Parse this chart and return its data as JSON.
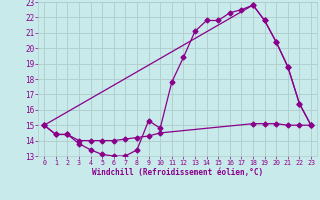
{
  "xlabel": "Windchill (Refroidissement éolien,°C)",
  "xlim": [
    -0.5,
    23.5
  ],
  "ylim": [
    13,
    23
  ],
  "xticks": [
    0,
    1,
    2,
    3,
    4,
    5,
    6,
    7,
    8,
    9,
    10,
    11,
    12,
    13,
    14,
    15,
    16,
    17,
    18,
    19,
    20,
    21,
    22,
    23
  ],
  "yticks": [
    13,
    14,
    15,
    16,
    17,
    18,
    19,
    20,
    21,
    22,
    23
  ],
  "bg_color": "#c8eaea",
  "line_color": "#8b008b",
  "grid_color": "#b0cccc",
  "line1_x": [
    0,
    1,
    2,
    3,
    4,
    5,
    6,
    7,
    8,
    9,
    10,
    11,
    12,
    13,
    14,
    15,
    16,
    17,
    18,
    19,
    20,
    21,
    22,
    23
  ],
  "line1_y": [
    15.0,
    14.4,
    14.4,
    13.8,
    13.4,
    13.1,
    13.0,
    13.0,
    13.4,
    15.3,
    14.8,
    17.8,
    19.4,
    21.1,
    21.8,
    21.8,
    22.3,
    22.5,
    22.8,
    21.8,
    20.4,
    18.8,
    16.4,
    15.0
  ],
  "line2_x": [
    0,
    1,
    2,
    3,
    4,
    5,
    6,
    7,
    8,
    9,
    10,
    18,
    19,
    20,
    21,
    22,
    23
  ],
  "line2_y": [
    15.0,
    14.4,
    14.4,
    14.0,
    14.0,
    14.0,
    14.0,
    14.1,
    14.2,
    14.3,
    14.5,
    15.1,
    15.1,
    15.1,
    15.0,
    15.0,
    15.0
  ],
  "line3_x": [
    0,
    18,
    19,
    20,
    21,
    22,
    23
  ],
  "line3_y": [
    15.0,
    22.8,
    21.8,
    20.4,
    18.8,
    16.4,
    15.0
  ],
  "marker": "D",
  "markersize": 2.5,
  "linewidth": 0.9
}
